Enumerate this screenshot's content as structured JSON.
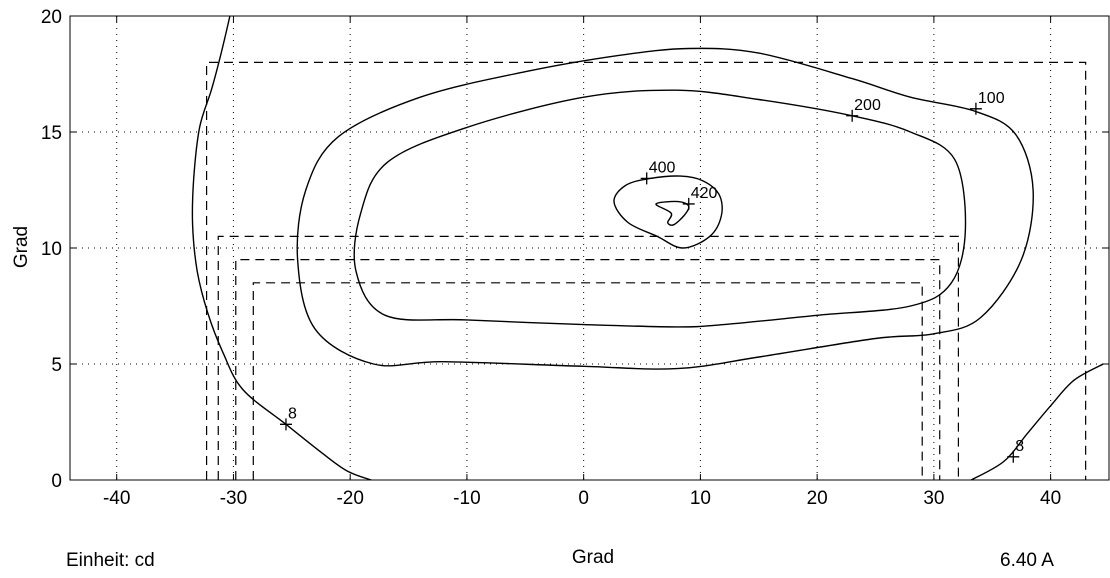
{
  "chart_data": {
    "type": "contour",
    "xlabel": "Grad",
    "ylabel": "Grad",
    "xlim": [
      -44,
      45
    ],
    "ylim": [
      0,
      20
    ],
    "x_ticks": [
      -40,
      -30,
      -20,
      -10,
      0,
      10,
      20,
      30,
      40
    ],
    "y_ticks": [
      0,
      5,
      10,
      15,
      20
    ],
    "grid": true,
    "contours": [
      {
        "level_label": "8",
        "points": [
          [
            -30.3,
            20
          ],
          [
            -31.1,
            18.3
          ],
          [
            -31.9,
            16.8
          ],
          [
            -32.9,
            15.2
          ],
          [
            -33.4,
            13
          ],
          [
            -33.5,
            11
          ],
          [
            -33.1,
            9
          ],
          [
            -32.2,
            7.2
          ],
          [
            -30.9,
            5.5
          ],
          [
            -29.2,
            3.9
          ],
          [
            -25.5,
            2.4
          ],
          [
            -22.5,
            1.2
          ],
          [
            -20.3,
            0.4
          ],
          [
            -18.2,
            0
          ]
        ]
      },
      {
        "level_label": "8",
        "points": [
          [
            33.2,
            0
          ],
          [
            36,
            0.8
          ],
          [
            38,
            2
          ],
          [
            40,
            3.2
          ],
          [
            42,
            4.3
          ],
          [
            44.5,
            5
          ]
        ]
      },
      {
        "level_label": "100",
        "closed": true,
        "points": [
          [
            9,
            18.6
          ],
          [
            15,
            18.4
          ],
          [
            23,
            17.3
          ],
          [
            28,
            16.5
          ],
          [
            33.5,
            15.9
          ],
          [
            37,
            14.9
          ],
          [
            38.5,
            12.5
          ],
          [
            37.5,
            9.5
          ],
          [
            34,
            7
          ],
          [
            30,
            6.3
          ],
          [
            25,
            6.1
          ],
          [
            15,
            5.3
          ],
          [
            8,
            4.8
          ],
          [
            0,
            4.9
          ],
          [
            -12,
            5.1
          ],
          [
            -18,
            5
          ],
          [
            -23,
            6.5
          ],
          [
            -24.5,
            9.5
          ],
          [
            -23.8,
            12.5
          ],
          [
            -21,
            14.8
          ],
          [
            -14,
            16.5
          ],
          [
            -5,
            17.6
          ],
          [
            3,
            18.3
          ]
        ]
      },
      {
        "level_label": "200",
        "closed": true,
        "points": [
          [
            8,
            16.8
          ],
          [
            15,
            16.4
          ],
          [
            23,
            15.7
          ],
          [
            28,
            15
          ],
          [
            31.8,
            13.8
          ],
          [
            32.7,
            10.8
          ],
          [
            31.5,
            8.5
          ],
          [
            28,
            7.5
          ],
          [
            20,
            7.1
          ],
          [
            12,
            6.7
          ],
          [
            8,
            6.6
          ],
          [
            0,
            6.7
          ],
          [
            -10,
            6.9
          ],
          [
            -17,
            7.1
          ],
          [
            -19.5,
            9
          ],
          [
            -19.1,
            11.5
          ],
          [
            -16.8,
            13.7
          ],
          [
            -10,
            15.2
          ],
          [
            0,
            16.5
          ]
        ]
      },
      {
        "level_label": "400",
        "closed": true,
        "points": [
          [
            5.7,
            13
          ],
          [
            8.3,
            13.1
          ],
          [
            10.2,
            12.9
          ],
          [
            11.6,
            12.3
          ],
          [
            11.8,
            11.4
          ],
          [
            10.8,
            10.5
          ],
          [
            8.5,
            10
          ],
          [
            6.3,
            10.5
          ],
          [
            3.8,
            11.1
          ],
          [
            2.6,
            12
          ],
          [
            3.6,
            12.7
          ]
        ]
      },
      {
        "level_label": "420",
        "closed": true,
        "points": [
          [
            6.2,
            11.9
          ],
          [
            8.1,
            12
          ],
          [
            9,
            11.8
          ],
          [
            8.6,
            11.4
          ],
          [
            7.7,
            11
          ],
          [
            7.2,
            11.1
          ],
          [
            7.5,
            11.5
          ]
        ]
      }
    ],
    "rectangles": [
      {
        "x": [
          -32.3,
          43
        ],
        "y": [
          0,
          18
        ]
      },
      {
        "x": [
          -31.3,
          32.1
        ],
        "y": [
          0,
          10.5
        ]
      },
      {
        "x": [
          -29.8,
          30.5
        ],
        "y": [
          0,
          9.5
        ]
      },
      {
        "x": [
          -28.3,
          29
        ],
        "y": [
          0,
          8.5
        ]
      }
    ],
    "markers": [
      {
        "x": -25.5,
        "y": 2.4,
        "label": "8"
      },
      {
        "x": 36.8,
        "y": 1,
        "label": "8"
      },
      {
        "x": 33.6,
        "y": 16,
        "label": "100"
      },
      {
        "x": 23,
        "y": 15.7,
        "label": "200"
      },
      {
        "x": 5.4,
        "y": 13,
        "label": "400"
      },
      {
        "x": 9,
        "y": 11.9,
        "label": "420"
      }
    ]
  },
  "footer": {
    "unit": "Einheit: cd",
    "current": "6.40 A"
  }
}
